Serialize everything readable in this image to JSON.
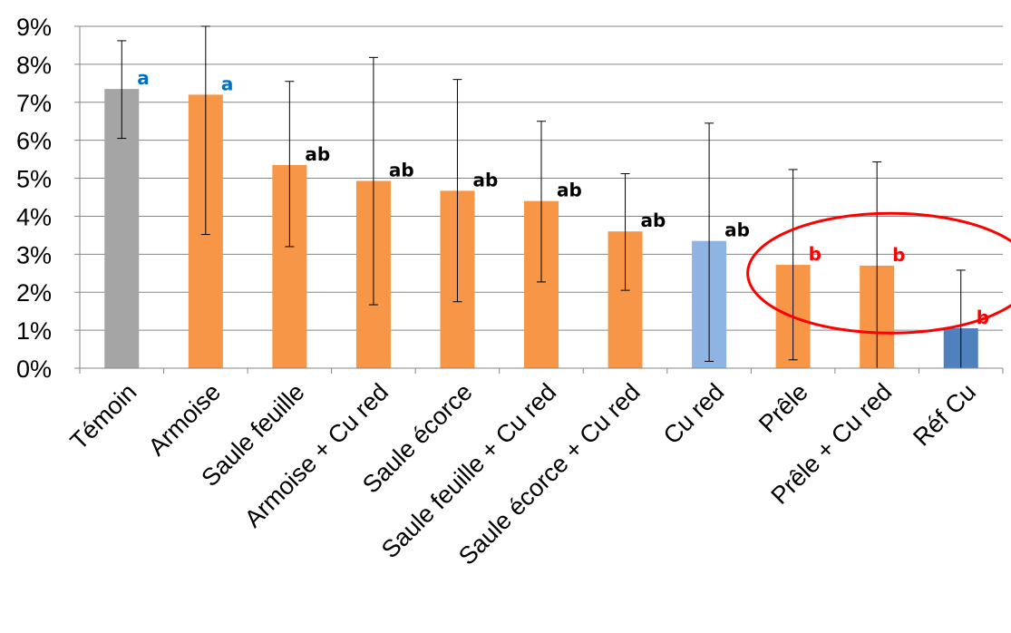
{
  "chart_data": {
    "type": "bar",
    "title": "",
    "xlabel": "",
    "ylabel": "",
    "ylim": [
      0,
      9
    ],
    "y_unit": "%",
    "y_ticks": [
      "0%",
      "1%",
      "2%",
      "3%",
      "4%",
      "5%",
      "6%",
      "7%",
      "8%",
      "9%"
    ],
    "grid": "horizontal",
    "legend": "none",
    "categories": [
      "Témoin",
      "Armoise",
      "Saule feuille",
      "Armoise + Cu red",
      "Saule écorce",
      "Saule feuille + Cu red",
      "Saule écorce + Cu red",
      "Cu red",
      "Prêle",
      "Prêle + Cu red",
      "Réf Cu"
    ],
    "values": [
      7.35,
      7.2,
      5.35,
      4.93,
      4.67,
      4.4,
      3.6,
      3.35,
      2.72,
      2.7,
      1.05
    ],
    "error_low": [
      6.05,
      3.52,
      3.2,
      1.67,
      1.75,
      2.27,
      2.05,
      0.18,
      0.22,
      0.0,
      0.0
    ],
    "error_high": [
      8.62,
      9.0,
      7.55,
      8.18,
      7.6,
      6.5,
      5.12,
      6.45,
      5.23,
      5.43,
      2.58
    ],
    "significance": [
      "a",
      "a",
      "ab",
      "ab",
      "ab",
      "ab",
      "ab",
      "ab",
      "b",
      "b",
      "b"
    ],
    "bar_colors": [
      "#a5a5a5",
      "#f79646",
      "#f79646",
      "#f79646",
      "#f79646",
      "#f79646",
      "#f79646",
      "#8db4e2",
      "#f79646",
      "#f79646",
      "#4f81bd"
    ],
    "significance_colors": [
      "#0070c0",
      "#0070c0",
      "#000000",
      "#000000",
      "#000000",
      "#000000",
      "#000000",
      "#000000",
      "#ff0000",
      "#ff0000",
      "#ff0000"
    ],
    "highlight": {
      "shape": "ellipse",
      "color": "#ff0000",
      "around": [
        "Prêle",
        "Prêle + Cu red",
        "Réf Cu"
      ]
    }
  }
}
